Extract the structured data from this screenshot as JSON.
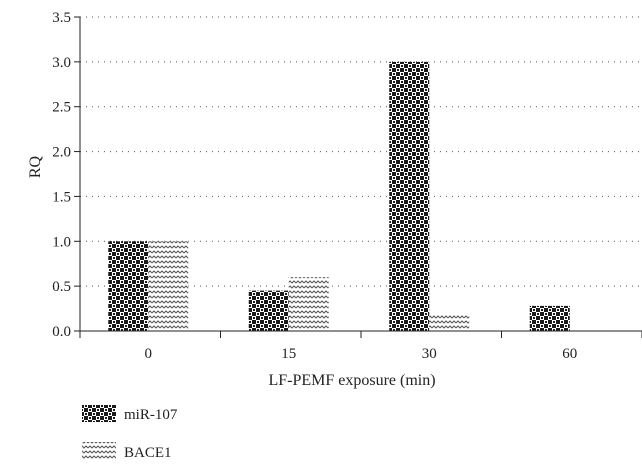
{
  "chart_data": {
    "type": "bar",
    "title": "",
    "xlabel": "LF-PEMF exposure (min)",
    "ylabel": "RQ",
    "categories": [
      "0",
      "15",
      "30",
      "60"
    ],
    "series": [
      {
        "name": "miR-107",
        "values": [
          1.0,
          0.45,
          3.0,
          0.28
        ],
        "pattern": "checkerboard"
      },
      {
        "name": "BACE1",
        "values": [
          1.0,
          0.6,
          0.18,
          0.02
        ],
        "pattern": "zigzag"
      }
    ],
    "ylim": [
      0,
      3.5
    ],
    "yticks": [
      "0.0",
      "0.5",
      "1.0",
      "1.5",
      "2.0",
      "2.5",
      "3.0",
      "3.5"
    ],
    "grid": "horizontal dotted",
    "legend_position": "bottom-left",
    "colors": {
      "axis": "#222222",
      "grid": "#555555",
      "pattern_dark": "#1a1a1a",
      "pattern_light": "#ffffff"
    }
  }
}
